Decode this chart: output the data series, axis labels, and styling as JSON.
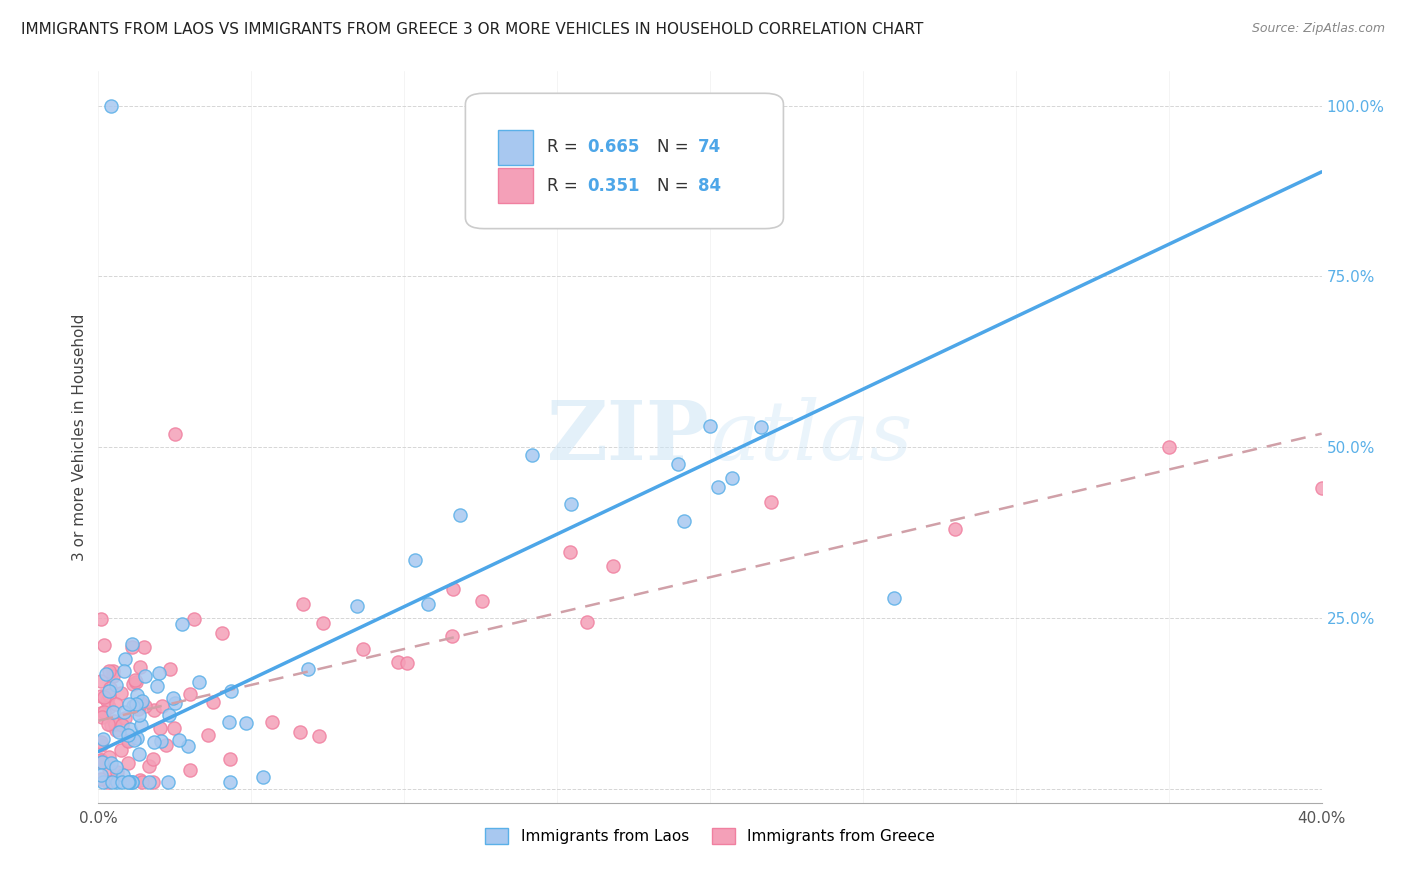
{
  "title": "IMMIGRANTS FROM LAOS VS IMMIGRANTS FROM GREECE 3 OR MORE VEHICLES IN HOUSEHOLD CORRELATION CHART",
  "source": "Source: ZipAtlas.com",
  "ylabel": "3 or more Vehicles in Household",
  "xlim": [
    0.0,
    0.4
  ],
  "ylim": [
    -0.02,
    1.05
  ],
  "laos_R": 0.665,
  "laos_N": 74,
  "greece_R": 0.351,
  "greece_N": 84,
  "laos_color": "#a8c8f0",
  "greece_color": "#f4a0b8",
  "laos_edge_color": "#5ab0e8",
  "greece_edge_color": "#f080a0",
  "laos_line_color": "#4da6e8",
  "greece_line_color": "#e89090",
  "tick_color": "#5ab0e8",
  "watermark": "ZIPatlas",
  "laos_line_intercept": 0.055,
  "laos_line_slope": 2.12,
  "greece_line_intercept": 0.1,
  "greece_line_slope": 1.05
}
